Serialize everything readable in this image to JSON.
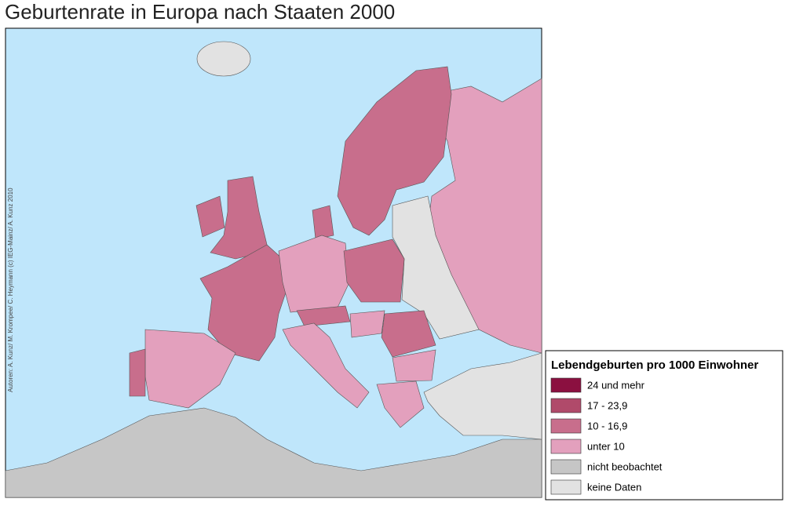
{
  "title": "Geburtenrate in Europa nach Staaten 2000",
  "credit": "Autoren: A. Kunz/ M. Krompee/ C. Heymann (c) IEG-Mainz/ A. Kunz 2010",
  "legend": {
    "title": "Lebendgeburten pro 1000 Einwohner",
    "items": [
      {
        "label": "24 und mehr",
        "color": "#8b1040"
      },
      {
        "label": "17 - 23,9",
        "color": "#b04a6a"
      },
      {
        "label": "10 - 16,9",
        "color": "#c86e8c"
      },
      {
        "label": "unter 10",
        "color": "#e3a0bd"
      },
      {
        "label": "nicht beobachtet",
        "color": "#c6c6c6"
      },
      {
        "label": "keine Daten",
        "color": "#e2e2e2"
      }
    ]
  }
}
